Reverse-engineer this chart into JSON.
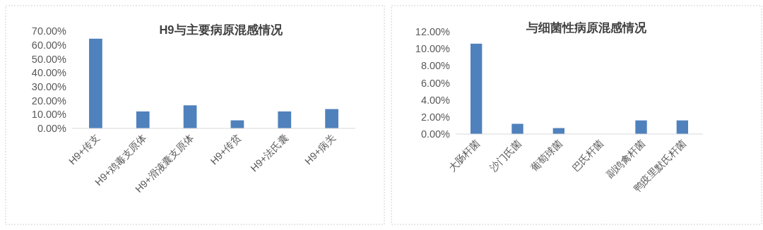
{
  "chart_data": [
    {
      "type": "bar",
      "title": "H9与主要病原混感情况",
      "categories": [
        "H9+传支",
        "H9+鸡毒支原体",
        "H9+滑液囊支原体",
        "H9+传贫",
        "H9+法氏囊",
        "H9+病关"
      ],
      "values": [
        64.5,
        12.2,
        16.6,
        5.8,
        12.2,
        13.9
      ],
      "color": "#4f81bd",
      "ylim": [
        0,
        70
      ],
      "yticks": [
        {
          "value": 0,
          "label": "0.00%"
        },
        {
          "value": 10,
          "label": "10.00%"
        },
        {
          "value": 20,
          "label": "20.00%"
        },
        {
          "value": 30,
          "label": "30.00%"
        },
        {
          "value": 40,
          "label": "40.00%"
        },
        {
          "value": 50,
          "label": "50.00%"
        },
        {
          "value": 60,
          "label": "60.00%"
        },
        {
          "value": 70,
          "label": "70.00%"
        }
      ]
    },
    {
      "type": "bar",
      "title": "与细菌性病原混感情况",
      "categories": [
        "大肠杆菌",
        "沙门氏菌",
        "葡萄球菌",
        "巴氏杆菌",
        "副鸡禽杆菌",
        "鸭疫里默氏杆菌"
      ],
      "values": [
        10.6,
        1.2,
        0.7,
        0,
        1.6,
        1.6
      ],
      "color": "#4f81bd",
      "ylim": [
        0,
        12
      ],
      "yticks": [
        {
          "value": 0,
          "label": "0.00%"
        },
        {
          "value": 2,
          "label": "2.00%"
        },
        {
          "value": 4,
          "label": "4.00%"
        },
        {
          "value": 6,
          "label": "6.00%"
        },
        {
          "value": 8,
          "label": "8.00%"
        },
        {
          "value": 10,
          "label": "10.00%"
        },
        {
          "value": 12,
          "label": "12.00%"
        }
      ]
    }
  ]
}
